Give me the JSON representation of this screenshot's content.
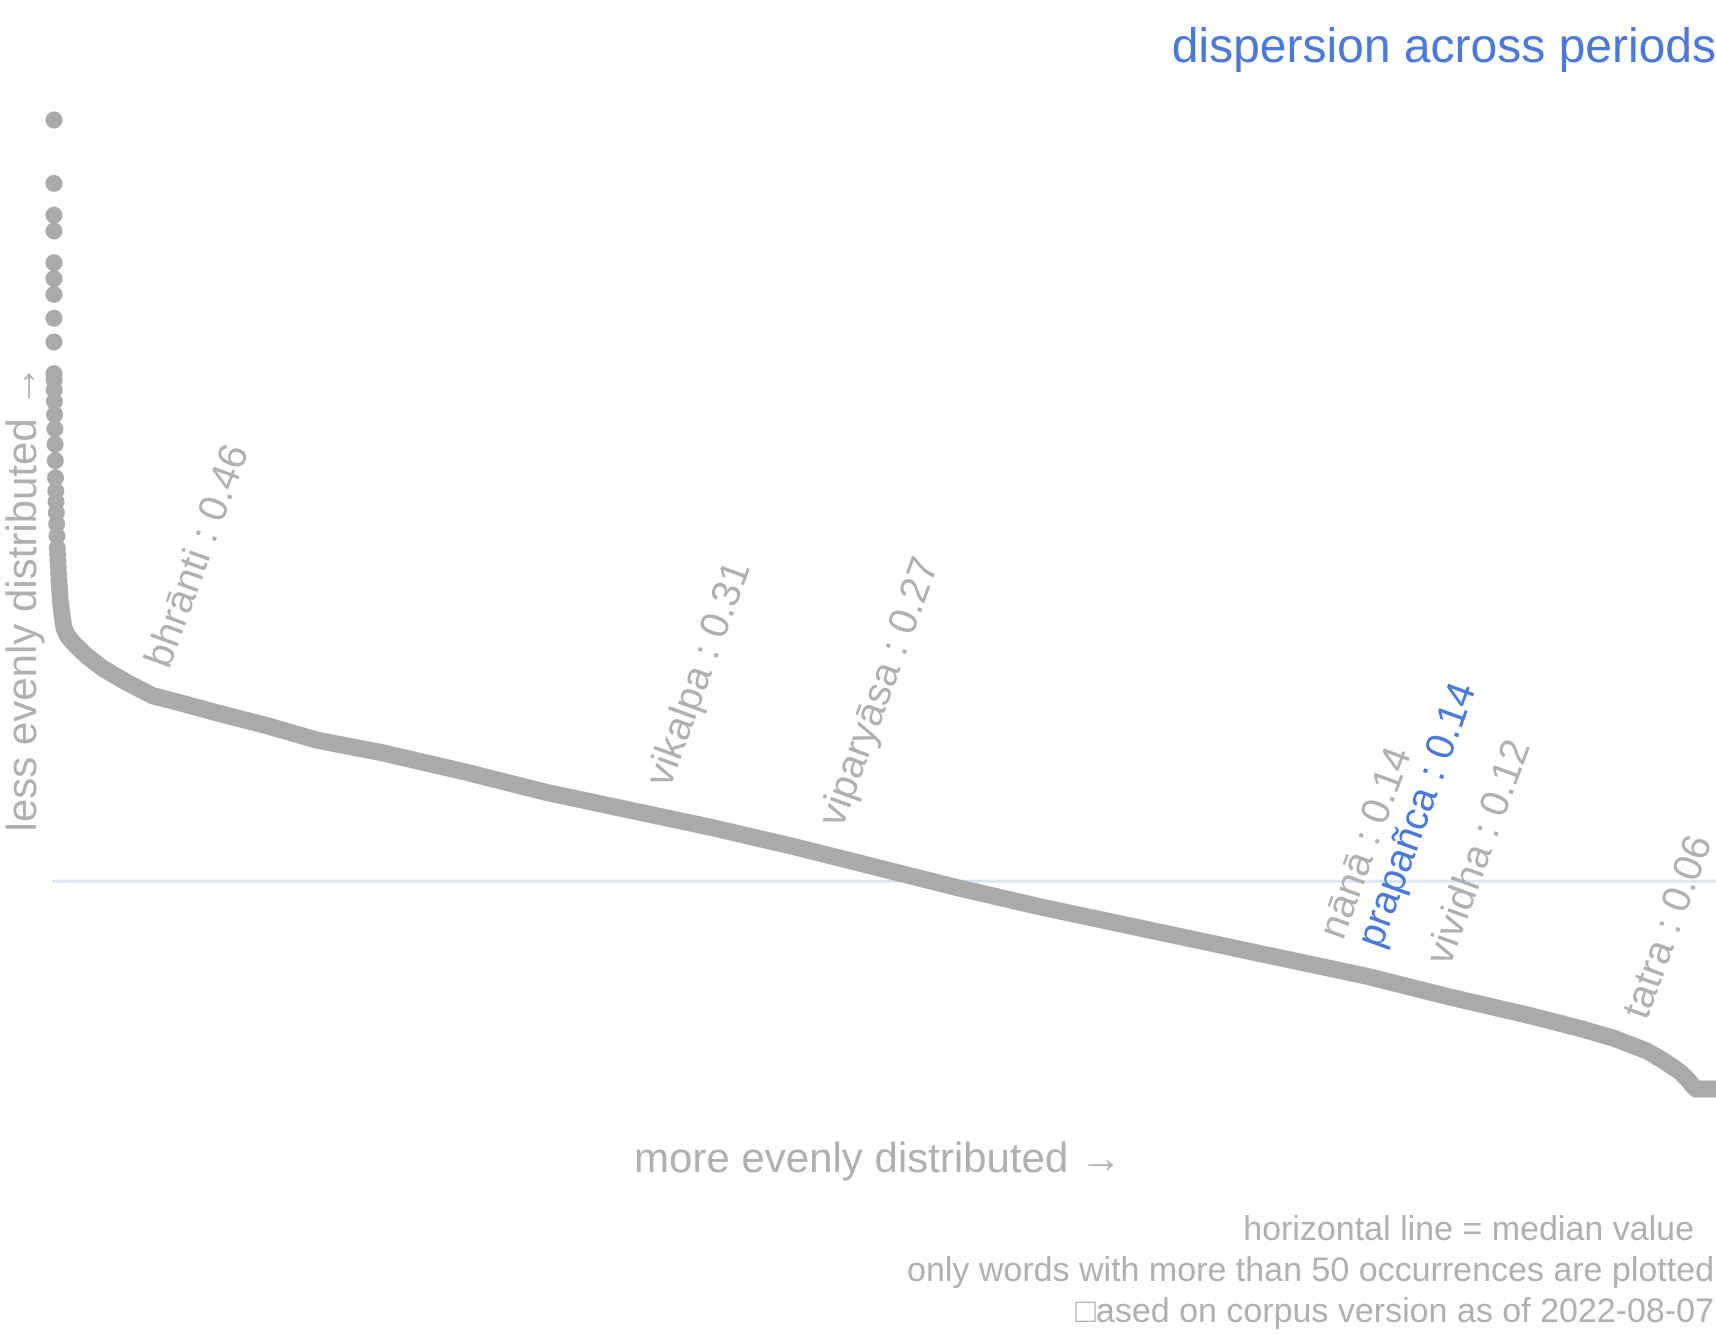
{
  "chart_data": {
    "type": "scatter",
    "title": "dispersion across periods",
    "xlabel": "more evenly distributed →",
    "ylabel": "less evenly distributed →",
    "grid": false,
    "legend": "none",
    "colors": {
      "title": "#4a78db",
      "points": "#aaaaaa",
      "axis_text": "#b0b0b0",
      "highlight": "#4a78db",
      "median_line": "#dbe5f6"
    },
    "median": 0.22,
    "curve": {
      "x": [
        0,
        0.001,
        0.002,
        0.003,
        0.004,
        0.006,
        0.008,
        0.012,
        0.02,
        0.03,
        0.045,
        0.06,
        0.075,
        0.1,
        0.13,
        0.16,
        0.2,
        0.25,
        0.3,
        0.35,
        0.4,
        0.45,
        0.5,
        0.55,
        0.6,
        0.65,
        0.7,
        0.75,
        0.8,
        0.85,
        0.9,
        0.93,
        0.95,
        0.97,
        0.98,
        0.99,
        0.995,
        0.998,
        1.0
      ],
      "y": [
        0.54,
        0.47,
        0.43,
        0.41,
        0.395,
        0.38,
        0.375,
        0.37,
        0.362,
        0.354,
        0.345,
        0.337,
        0.333,
        0.326,
        0.318,
        0.309,
        0.301,
        0.289,
        0.276,
        0.265,
        0.254,
        0.242,
        0.229,
        0.216,
        0.204,
        0.193,
        0.182,
        0.171,
        0.16,
        0.147,
        0.135,
        0.127,
        0.121,
        0.113,
        0.107,
        0.1,
        0.095,
        0.091,
        0.089
      ]
    },
    "top_points": {
      "x": [
        0,
        0,
        0,
        0,
        0,
        0,
        0,
        0,
        0
      ],
      "y": [
        0.7,
        0.66,
        0.64,
        0.63,
        0.61,
        0.6,
        0.59,
        0.575,
        0.56
      ]
    },
    "annotations": [
      {
        "word": "bhrānti",
        "value": "0.46",
        "label": "bhrānti : 0.46",
        "x": 0.07,
        "highlight": false
      },
      {
        "word": "vikalpa",
        "value": "0.31",
        "label": "vikalpa : 0.31",
        "x": 0.375,
        "highlight": false
      },
      {
        "word": "viparyāsa",
        "value": "0.27",
        "label": "viparyāsa : 0.27",
        "x": 0.48,
        "highlight": false
      },
      {
        "word": "nānā",
        "value": "0.14",
        "label": "nānā : 0.14",
        "x": 0.785,
        "highlight": false
      },
      {
        "word": "prapañca",
        "value": "0.14",
        "label": "prapañca : 0.14",
        "x": 0.808,
        "highlight": true
      },
      {
        "word": "vividha",
        "value": "0.12",
        "label": "vividha : 0.12",
        "x": 0.85,
        "highlight": false
      },
      {
        "word": "tatra",
        "value": "0.06",
        "label": "tatra : 0.06",
        "x": 0.97,
        "highlight": false
      }
    ],
    "footnotes": [
      "horizontal line = median value",
      "only words with more than 50 occurrences are plotted",
      "□ased on corpus version as of 2022-08-07"
    ]
  }
}
